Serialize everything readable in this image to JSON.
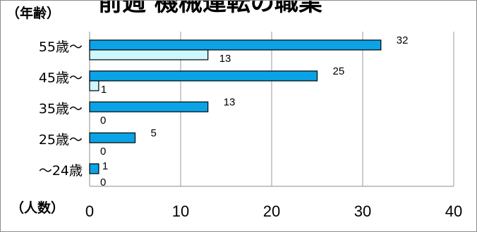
{
  "chart_data": {
    "type": "bar",
    "orientation": "horizontal",
    "title": "前週 機械運転の職業",
    "ylabel": "（年齢）",
    "xlabel": "（人数）",
    "categories": [
      "55歳〜",
      "45歳〜",
      "35歳〜",
      "25歳〜",
      "〜24歳"
    ],
    "series": [
      {
        "values": [
          32,
          25,
          13,
          5,
          1
        ],
        "color": "#0aa3e6"
      },
      {
        "values": [
          13,
          1,
          0,
          0,
          0
        ],
        "color": "#ccf7ff"
      }
    ],
    "xlim": [
      0,
      40
    ],
    "xticks": [
      "0",
      "10",
      "20",
      "30",
      "40"
    ],
    "grid": true,
    "legend": "none"
  }
}
